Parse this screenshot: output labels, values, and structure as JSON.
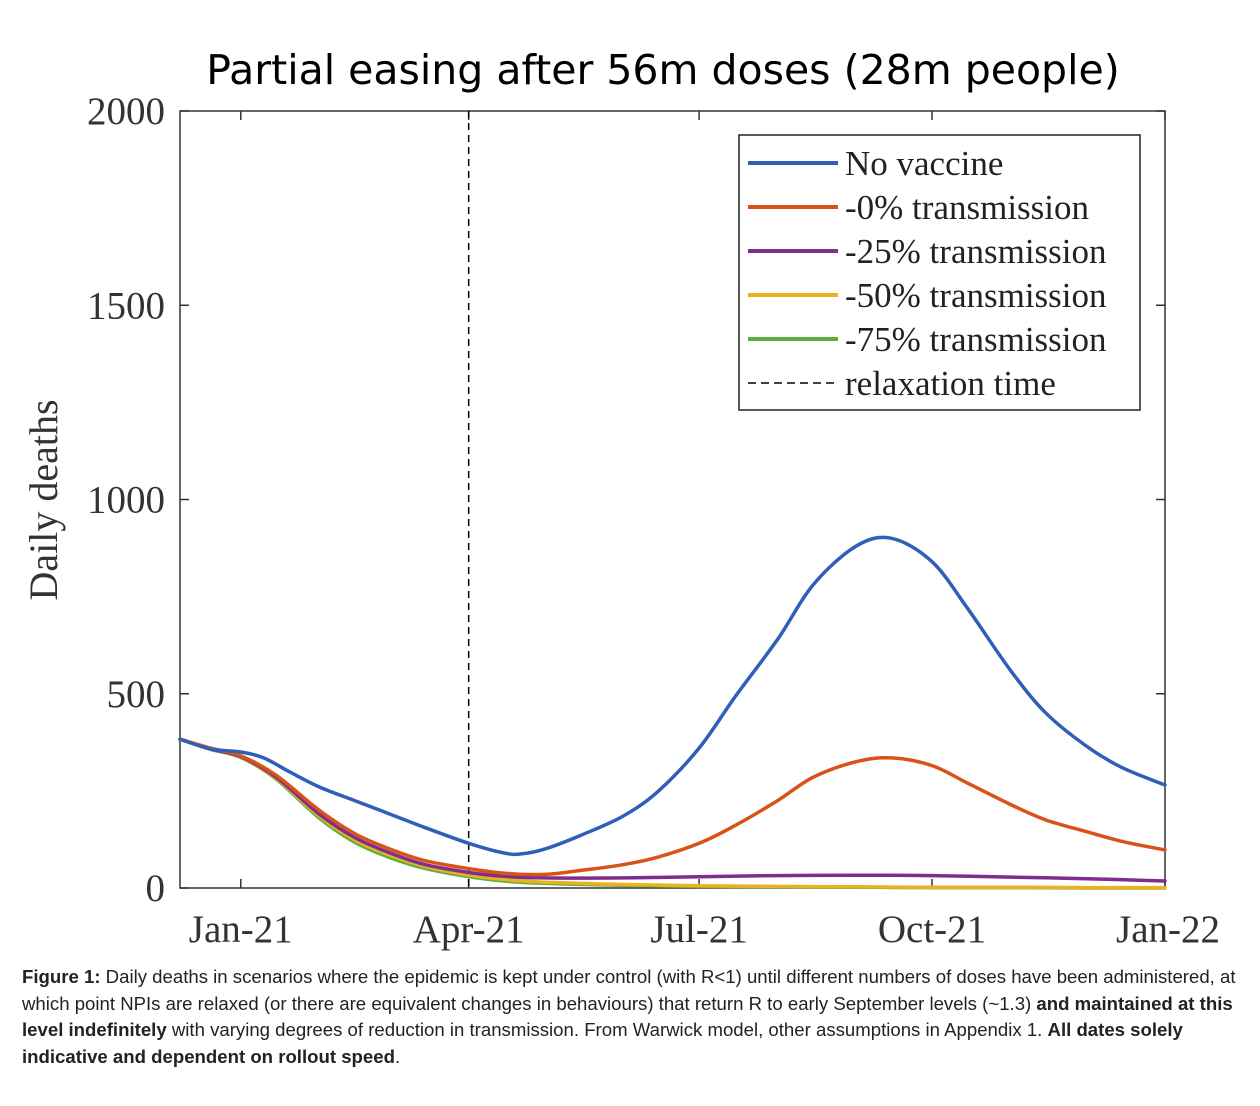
{
  "chart_data": {
    "type": "line",
    "title": "Partial easing after 56m doses (28m people)",
    "xlabel": "",
    "ylabel": "Daily deaths",
    "ylim": [
      0,
      2000
    ],
    "yticks": [
      0,
      500,
      1000,
      1500,
      2000
    ],
    "ytick_labels": [
      "0",
      "500",
      "1000",
      "1500",
      "2000"
    ],
    "xlim": [
      "2020-12-08",
      "2022-01-01"
    ],
    "xticks": [
      "2021-01-01",
      "2021-04-01",
      "2021-07-01",
      "2021-10-01",
      "2022-01-01"
    ],
    "xtick_labels": [
      "Jan-21",
      "Apr-21",
      "Jul-21",
      "Oct-21",
      "Jan-22"
    ],
    "grid": false,
    "legend_position": "top-right",
    "relaxation_date": "2021-04-01",
    "series": [
      {
        "name": "No vaccine",
        "color": "#2f5fb8",
        "points": [
          [
            "2020-12-08",
            383
          ],
          [
            "2020-12-20",
            358
          ],
          [
            "2021-01-01",
            350
          ],
          [
            "2021-01-10",
            335
          ],
          [
            "2021-01-20",
            300
          ],
          [
            "2021-02-01",
            260
          ],
          [
            "2021-02-15",
            225
          ],
          [
            "2021-03-01",
            190
          ],
          [
            "2021-03-15",
            155
          ],
          [
            "2021-04-01",
            115
          ],
          [
            "2021-04-15",
            90
          ],
          [
            "2021-04-22",
            88
          ],
          [
            "2021-05-01",
            100
          ],
          [
            "2021-05-15",
            135
          ],
          [
            "2021-06-01",
            185
          ],
          [
            "2021-06-15",
            250
          ],
          [
            "2021-07-01",
            360
          ],
          [
            "2021-07-15",
            490
          ],
          [
            "2021-08-01",
            640
          ],
          [
            "2021-08-15",
            780
          ],
          [
            "2021-09-01",
            880
          ],
          [
            "2021-09-15",
            900
          ],
          [
            "2021-10-01",
            840
          ],
          [
            "2021-10-15",
            720
          ],
          [
            "2021-11-01",
            560
          ],
          [
            "2021-11-15",
            450
          ],
          [
            "2021-12-01",
            365
          ],
          [
            "2021-12-15",
            310
          ],
          [
            "2022-01-01",
            265
          ]
        ]
      },
      {
        "name": "-0% transmission",
        "color": "#d95319",
        "points": [
          [
            "2020-12-08",
            383
          ],
          [
            "2020-12-20",
            360
          ],
          [
            "2021-01-01",
            340
          ],
          [
            "2021-01-15",
            290
          ],
          [
            "2021-02-01",
            200
          ],
          [
            "2021-02-15",
            140
          ],
          [
            "2021-03-01",
            100
          ],
          [
            "2021-03-15",
            70
          ],
          [
            "2021-04-01",
            50
          ],
          [
            "2021-04-15",
            38
          ],
          [
            "2021-05-01",
            35
          ],
          [
            "2021-05-15",
            45
          ],
          [
            "2021-06-01",
            60
          ],
          [
            "2021-06-15",
            80
          ],
          [
            "2021-07-01",
            115
          ],
          [
            "2021-07-15",
            160
          ],
          [
            "2021-08-01",
            225
          ],
          [
            "2021-08-15",
            285
          ],
          [
            "2021-09-01",
            325
          ],
          [
            "2021-09-15",
            335
          ],
          [
            "2021-10-01",
            315
          ],
          [
            "2021-10-15",
            270
          ],
          [
            "2021-11-01",
            215
          ],
          [
            "2021-11-15",
            175
          ],
          [
            "2021-12-01",
            145
          ],
          [
            "2021-12-15",
            120
          ],
          [
            "2022-01-01",
            98
          ]
        ]
      },
      {
        "name": "-25% transmission",
        "color": "#7e2f8e",
        "points": [
          [
            "2020-12-08",
            383
          ],
          [
            "2020-12-20",
            358
          ],
          [
            "2021-01-01",
            338
          ],
          [
            "2021-01-15",
            285
          ],
          [
            "2021-02-01",
            190
          ],
          [
            "2021-02-15",
            130
          ],
          [
            "2021-03-01",
            90
          ],
          [
            "2021-03-15",
            60
          ],
          [
            "2021-04-01",
            40
          ],
          [
            "2021-04-15",
            30
          ],
          [
            "2021-05-01",
            26
          ],
          [
            "2021-06-01",
            26
          ],
          [
            "2021-07-01",
            29
          ],
          [
            "2021-08-01",
            32
          ],
          [
            "2021-09-01",
            33
          ],
          [
            "2021-10-01",
            32
          ],
          [
            "2021-11-01",
            28
          ],
          [
            "2021-12-01",
            24
          ],
          [
            "2022-01-01",
            18
          ]
        ]
      },
      {
        "name": "-50% transmission",
        "color": "#edb120",
        "points": [
          [
            "2020-12-08",
            383
          ],
          [
            "2020-12-20",
            358
          ],
          [
            "2021-01-01",
            337
          ],
          [
            "2021-01-15",
            282
          ],
          [
            "2021-02-01",
            185
          ],
          [
            "2021-02-15",
            124
          ],
          [
            "2021-03-01",
            84
          ],
          [
            "2021-03-15",
            55
          ],
          [
            "2021-04-01",
            33
          ],
          [
            "2021-04-15",
            22
          ],
          [
            "2021-05-01",
            15
          ],
          [
            "2021-06-01",
            9
          ],
          [
            "2021-07-01",
            6
          ],
          [
            "2021-08-01",
            4
          ],
          [
            "2021-09-01",
            3
          ],
          [
            "2021-10-01",
            2
          ],
          [
            "2021-11-01",
            2
          ],
          [
            "2021-12-01",
            1
          ],
          [
            "2022-01-01",
            1
          ]
        ]
      },
      {
        "name": "-75% transmission",
        "color": "#57b13a",
        "points": [
          [
            "2020-12-08",
            383
          ],
          [
            "2020-12-20",
            357
          ],
          [
            "2021-01-01",
            336
          ],
          [
            "2021-01-15",
            280
          ],
          [
            "2021-02-01",
            180
          ],
          [
            "2021-02-15",
            118
          ],
          [
            "2021-03-01",
            78
          ],
          [
            "2021-03-15",
            50
          ],
          [
            "2021-04-01",
            29
          ],
          [
            "2021-04-15",
            18
          ],
          [
            "2021-05-01",
            12
          ],
          [
            "2021-06-01",
            7
          ],
          [
            "2021-07-01",
            4
          ],
          [
            "2021-08-01",
            3
          ],
          [
            "2021-09-01",
            2
          ],
          [
            "2021-10-01",
            1
          ],
          [
            "2021-11-01",
            1
          ],
          [
            "2021-12-01",
            0
          ],
          [
            "2022-01-01",
            0
          ]
        ]
      }
    ],
    "legend": [
      {
        "label": "No vaccine",
        "color": "#2f5fb8",
        "style": "solid"
      },
      {
        "label": "-0% transmission",
        "color": "#d95319",
        "style": "solid"
      },
      {
        "label": "-25% transmission",
        "color": "#7e2f8e",
        "style": "solid"
      },
      {
        "label": "-50% transmission",
        "color": "#edb120",
        "style": "solid"
      },
      {
        "label": "-75% transmission",
        "color": "#57b13a",
        "style": "solid"
      },
      {
        "label": "relaxation time",
        "color": "#000000",
        "style": "dashed"
      }
    ]
  },
  "caption": {
    "label": "Figure 1:",
    "part1": " Daily deaths in scenarios where the epidemic is kept under control (with R<1) until different numbers of doses have been administered, at which point NPIs are relaxed (or there are equivalent changes in behaviours) that return R to early September levels (~1.3) ",
    "bold1": "and maintained at this level indefinitely",
    "part2": " with varying degrees of reduction in transmission. From Warwick model, other assumptions in Appendix 1. ",
    "bold2": "All dates solely indicative and dependent on rollout speed",
    "end": "."
  }
}
